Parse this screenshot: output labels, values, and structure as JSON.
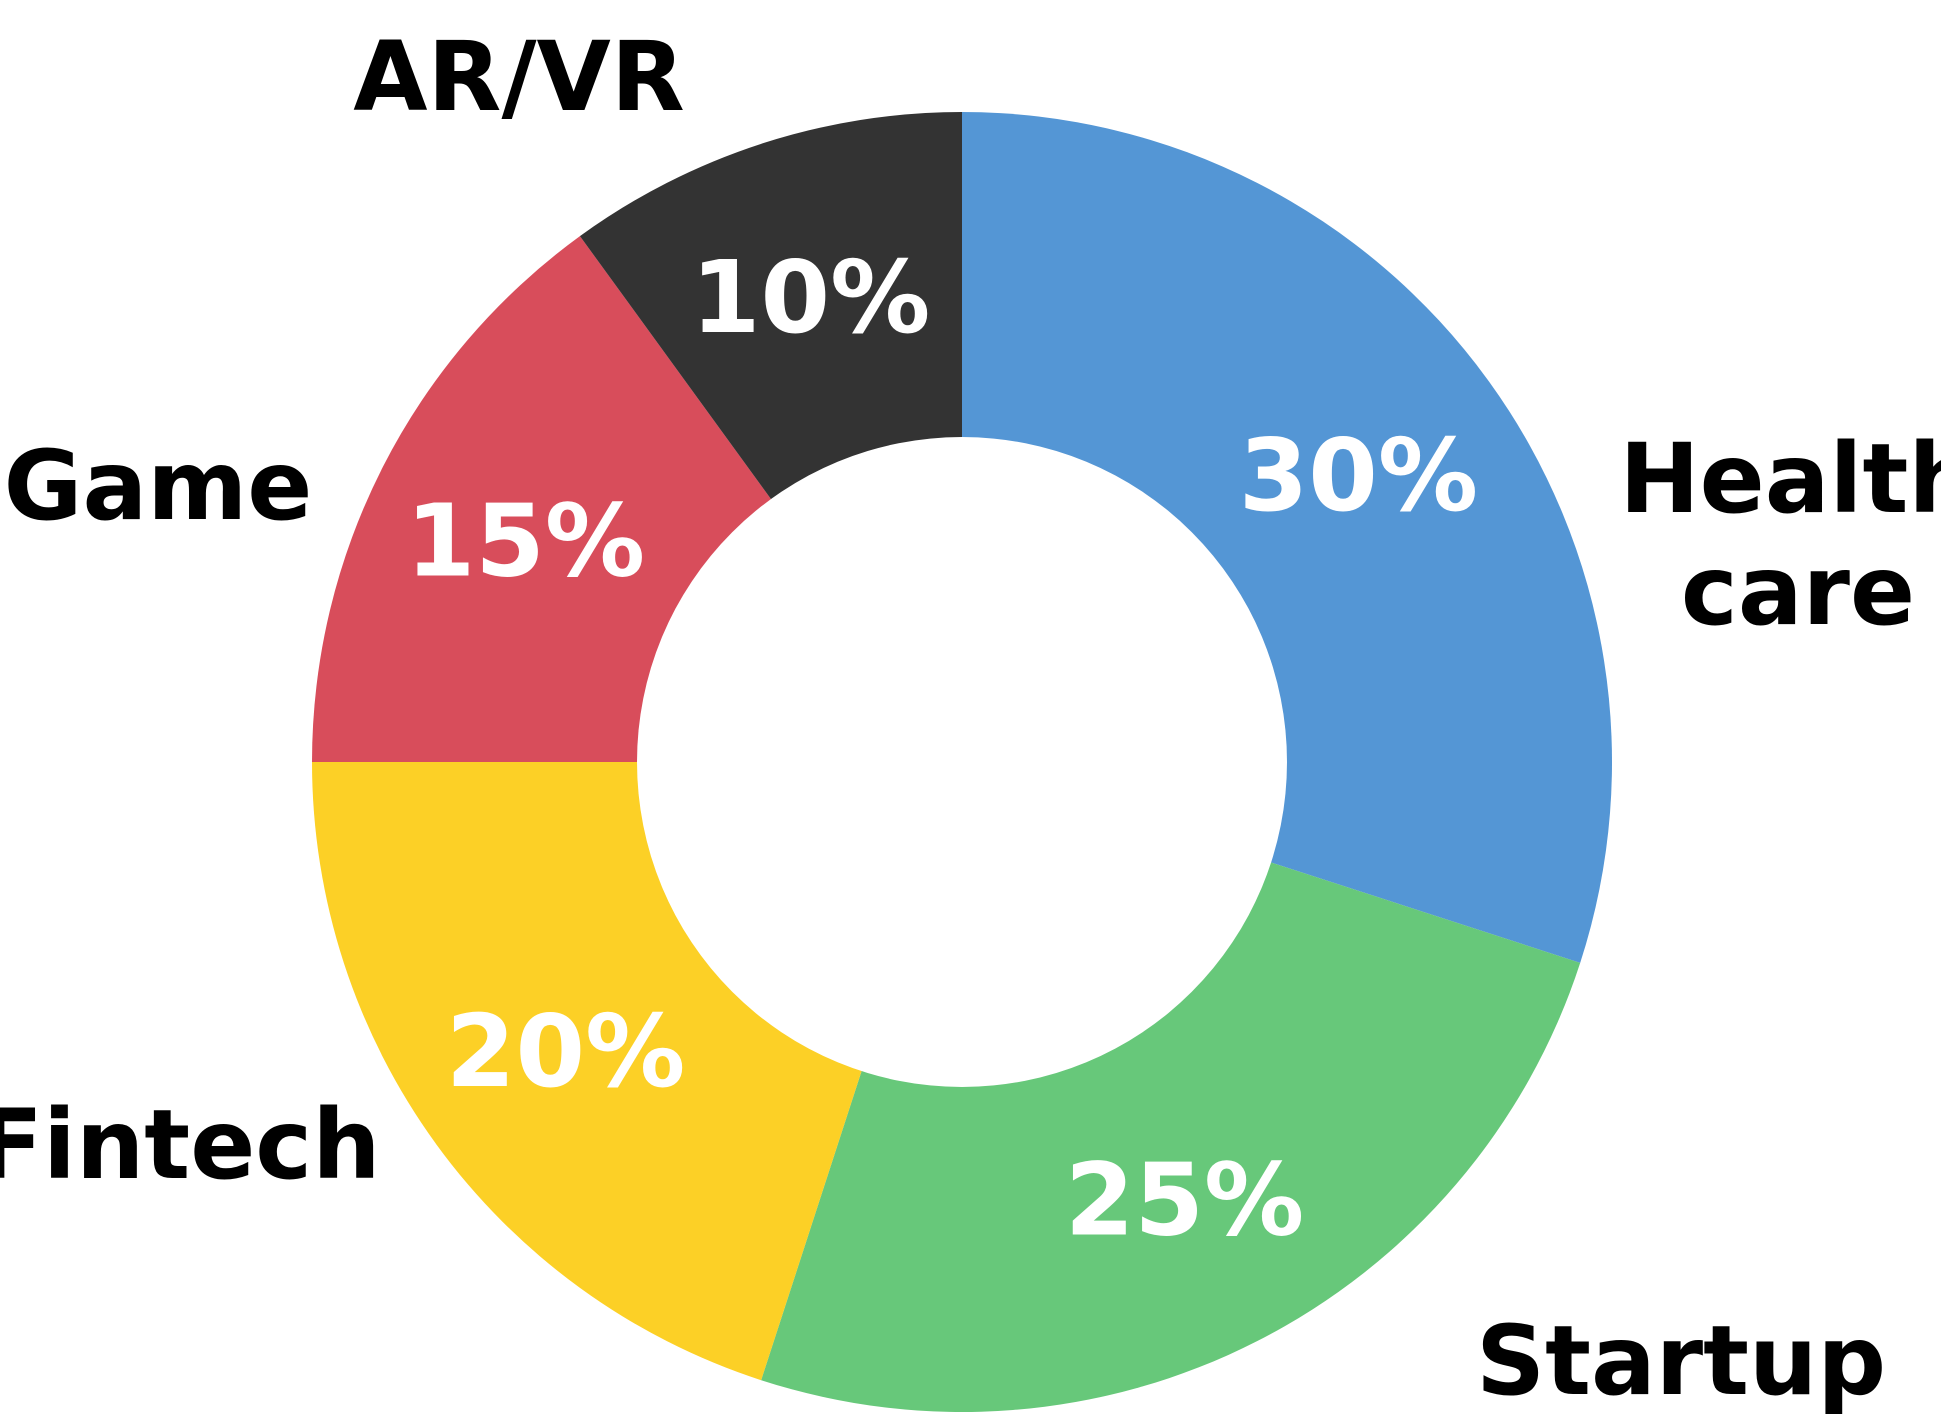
{
  "chart_data": {
    "type": "pie",
    "donut": true,
    "start_angle_deg": 0,
    "direction": "clockwise",
    "slices": [
      {
        "label": [
          "Health",
          "care"
        ],
        "value": 30,
        "value_label": "30%",
        "color": "#5496D5"
      },
      {
        "label": [
          "Startup"
        ],
        "value": 25,
        "value_label": "25%",
        "color": "#67C87A"
      },
      {
        "label": [
          "Fintech"
        ],
        "value": 20,
        "value_label": "20%",
        "color": "#FCD026"
      },
      {
        "label": [
          "Game"
        ],
        "value": 15,
        "value_label": "15%",
        "color": "#D84D5B"
      },
      {
        "label": [
          "AR/VR"
        ],
        "value": 10,
        "value_label": "10%",
        "color": "#333333"
      }
    ],
    "legend": "none"
  }
}
